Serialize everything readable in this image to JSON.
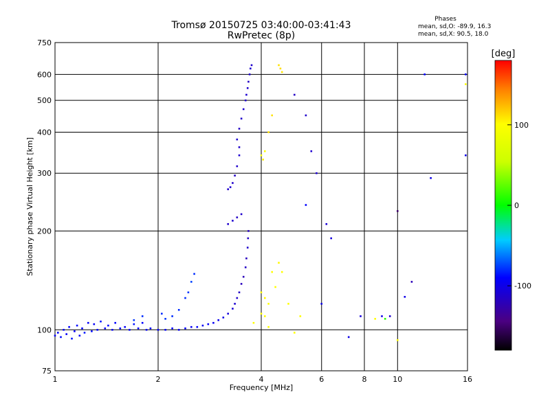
{
  "chart_data": {
    "type": "scatter",
    "title_line1": "Tromsø 20150725 03:40:00-03:41:43",
    "title_line2": "RwPretec (8p)",
    "stats": {
      "heading": "Phases",
      "line1": "mean, sd,O: -89.9, 16.3",
      "line2": "mean, sd,X:  90.5, 18.0"
    },
    "xlabel": "Frequency [MHz]",
    "ylabel": "Stationary phase Virtual Height [km]",
    "x_scale": "log",
    "y_scale": "log",
    "xlim": [
      1,
      16
    ],
    "ylim": [
      75,
      750
    ],
    "x_ticks": [
      1,
      2,
      4,
      6,
      8,
      10,
      16
    ],
    "y_ticks": [
      75,
      100,
      200,
      300,
      400,
      500,
      600,
      750
    ],
    "x_gridlines": [
      2,
      4,
      6,
      8,
      10
    ],
    "y_gridlines": [
      100,
      200,
      300,
      400,
      500,
      600
    ],
    "colorbar": {
      "label": "[deg]",
      "range": [
        -180,
        180
      ],
      "ticks": [
        -100,
        0,
        100
      ]
    },
    "series": [
      {
        "values": [
          [
            1.0,
            96,
            -95
          ],
          [
            1.02,
            98,
            -90
          ],
          [
            1.04,
            95,
            -88
          ],
          [
            1.06,
            100,
            -92
          ],
          [
            1.08,
            97,
            -95
          ],
          [
            1.1,
            102,
            -90
          ],
          [
            1.12,
            94,
            -86
          ],
          [
            1.14,
            99,
            -92
          ],
          [
            1.16,
            103,
            -88
          ],
          [
            1.18,
            96,
            -94
          ],
          [
            1.2,
            101,
            -90
          ],
          [
            1.22,
            98,
            -85
          ],
          [
            1.25,
            105,
            -92
          ],
          [
            1.28,
            99,
            -88
          ],
          [
            1.3,
            104,
            -94
          ],
          [
            1.33,
            100,
            -90
          ],
          [
            1.36,
            106,
            -86
          ],
          [
            1.4,
            101,
            -92
          ],
          [
            1.43,
            103,
            -88
          ],
          [
            1.47,
            100,
            -94
          ],
          [
            1.5,
            105,
            -90
          ],
          [
            1.55,
            101,
            -88
          ],
          [
            1.6,
            102,
            -92
          ],
          [
            1.65,
            100,
            -90
          ],
          [
            1.7,
            104,
            -86
          ],
          [
            1.75,
            101,
            -92
          ],
          [
            1.8,
            105,
            -90
          ],
          [
            1.85,
            100,
            -94
          ],
          [
            1.9,
            101,
            -88
          ],
          [
            2.0,
            100,
            -95
          ],
          [
            2.1,
            100,
            -92
          ],
          [
            2.2,
            101,
            -90
          ],
          [
            2.3,
            100,
            -95
          ],
          [
            2.4,
            101,
            -92
          ],
          [
            2.5,
            102,
            -95
          ],
          [
            2.6,
            102,
            -90
          ],
          [
            2.7,
            103,
            -95
          ],
          [
            2.8,
            104,
            -92
          ],
          [
            2.9,
            105,
            -95
          ],
          [
            3.0,
            107,
            -98
          ],
          [
            3.1,
            109,
            -100
          ],
          [
            3.2,
            112,
            -105
          ],
          [
            3.3,
            116,
            -108
          ],
          [
            3.35,
            120,
            -110
          ],
          [
            3.4,
            125,
            -112
          ],
          [
            3.45,
            130,
            -115
          ],
          [
            3.5,
            138,
            -118
          ],
          [
            3.55,
            145,
            -120
          ],
          [
            3.6,
            155,
            -115
          ],
          [
            3.62,
            165,
            -118
          ],
          [
            3.65,
            178,
            -112
          ],
          [
            3.66,
            190,
            -115
          ],
          [
            3.67,
            200,
            -118
          ],
          [
            3.2,
            210,
            -112
          ],
          [
            3.3,
            215,
            -110
          ],
          [
            3.4,
            220,
            -115
          ],
          [
            3.5,
            225,
            -112
          ],
          [
            3.2,
            268,
            -112
          ],
          [
            3.25,
            272,
            -110
          ],
          [
            3.3,
            280,
            -112
          ],
          [
            3.35,
            295,
            -115
          ],
          [
            3.4,
            315,
            -112
          ],
          [
            3.45,
            340,
            -110
          ],
          [
            3.45,
            360,
            -112
          ],
          [
            3.4,
            380,
            -110
          ],
          [
            3.45,
            410,
            -115
          ],
          [
            3.5,
            440,
            -112
          ],
          [
            3.55,
            470,
            -110
          ],
          [
            3.6,
            500,
            -112
          ],
          [
            3.62,
            520,
            -110
          ],
          [
            3.65,
            545,
            -112
          ],
          [
            3.67,
            570,
            -115
          ],
          [
            3.7,
            600,
            -112
          ],
          [
            3.72,
            625,
            -110
          ],
          [
            3.75,
            640,
            -112
          ],
          [
            2.45,
            130,
            -78
          ],
          [
            2.5,
            140,
            -75
          ],
          [
            2.55,
            148,
            -80
          ],
          [
            2.4,
            125,
            -80
          ],
          [
            2.3,
            115,
            -80
          ],
          [
            2.2,
            110,
            -80
          ],
          [
            1.8,
            110,
            -80
          ],
          [
            1.7,
            107,
            -78
          ],
          [
            2.05,
            112,
            -80
          ],
          [
            2.1,
            108,
            -78
          ],
          [
            4.0,
            340,
            100
          ],
          [
            4.1,
            350,
            100
          ],
          [
            4.05,
            330,
            105
          ],
          [
            4.2,
            400,
            110
          ],
          [
            4.3,
            450,
            110
          ],
          [
            4.5,
            640,
            110
          ],
          [
            4.55,
            625,
            112
          ],
          [
            4.6,
            610,
            108
          ],
          [
            4.0,
            130,
            100
          ],
          [
            4.1,
            125,
            102
          ],
          [
            4.2,
            120,
            100
          ],
          [
            4.3,
            150,
            100
          ],
          [
            4.5,
            160,
            102
          ],
          [
            4.0,
            112,
            100
          ],
          [
            4.1,
            110,
            100
          ],
          [
            3.8,
            105,
            100
          ],
          [
            4.2,
            102,
            100
          ],
          [
            4.4,
            135,
            100
          ],
          [
            4.6,
            150,
            100
          ],
          [
            4.8,
            120,
            100
          ],
          [
            5.0,
            98,
            100
          ],
          [
            5.2,
            110,
            100
          ],
          [
            5.0,
            520,
            -115
          ],
          [
            5.4,
            450,
            -112
          ],
          [
            5.6,
            350,
            -110
          ],
          [
            5.8,
            300,
            -110
          ],
          [
            6.2,
            210,
            -108
          ],
          [
            5.4,
            240,
            -90
          ],
          [
            6.0,
            120,
            -100
          ],
          [
            6.4,
            190,
            -105
          ],
          [
            7.2,
            95,
            -100
          ],
          [
            7.8,
            110,
            -105
          ],
          [
            8.6,
            108,
            100
          ],
          [
            9.0,
            110,
            -100
          ],
          [
            9.2,
            108,
            10
          ],
          [
            9.5,
            110,
            -110
          ],
          [
            10.0,
            230,
            -150
          ],
          [
            10.0,
            93,
            100
          ],
          [
            10.5,
            126,
            -100
          ],
          [
            11.0,
            140,
            -120
          ],
          [
            12.0,
            600,
            -90
          ],
          [
            12.5,
            290,
            -100
          ],
          [
            15.8,
            340,
            -100
          ],
          [
            15.8,
            560,
            100
          ],
          [
            15.8,
            600,
            -95
          ]
        ]
      }
    ]
  }
}
